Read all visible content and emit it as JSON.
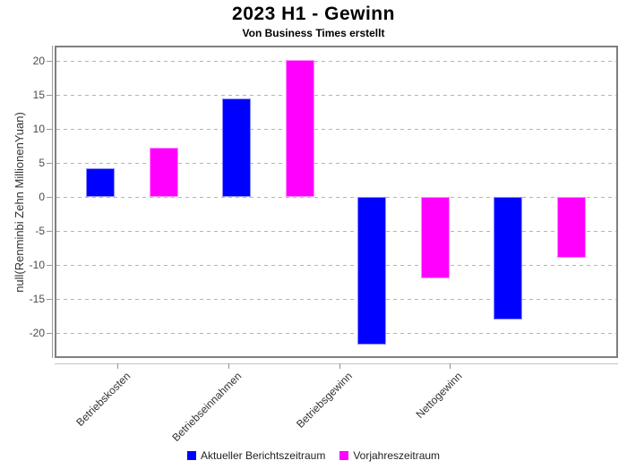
{
  "header": {
    "title": "2023 H1 - Gewinn",
    "subtitle": "Von Business Times erstellt"
  },
  "chart_data": {
    "type": "bar",
    "title": "2023 H1 - Gewinn",
    "subtitle": "Von Business Times erstellt",
    "xlabel": "",
    "ylabel": "null(Renminbi Zehn MillionenYuan)",
    "categories": [
      "Betriebskosten",
      "Betriebseinnahmen",
      "Betriebsgewinn",
      "Nettogewinn"
    ],
    "series": [
      {
        "name": "Aktueller Berichtszeitraum",
        "color": "#0000ff",
        "values": [
          4.2,
          14.5,
          -21.7,
          -18
        ]
      },
      {
        "name": "Vorjahreszeitraum",
        "color": "#ff00ff",
        "values": [
          7.3,
          20.1,
          -12,
          -9
        ]
      }
    ],
    "y_ticks": [
      20,
      15,
      10,
      5,
      0,
      -5,
      -10,
      -15,
      -20
    ],
    "ylim": [
      -23.5,
      22.3
    ],
    "grid": "horizontal-dashed",
    "legend_position": "bottom"
  }
}
